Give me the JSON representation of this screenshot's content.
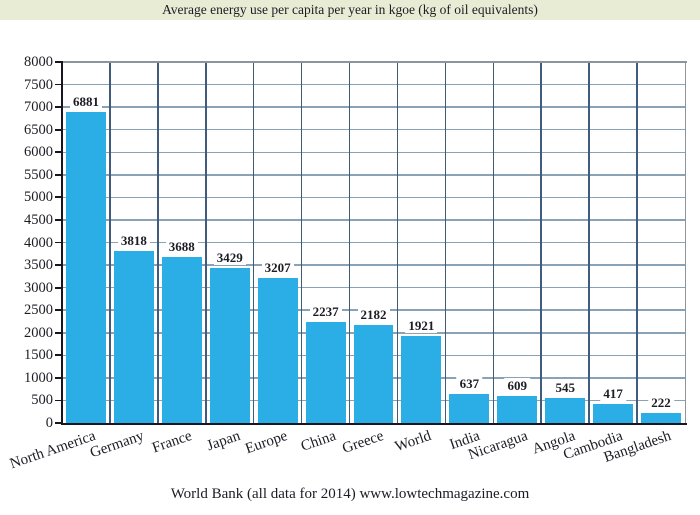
{
  "chart_data": {
    "type": "bar",
    "title": "Average energy use per capita per year in kgoe (kg of oil equivalents)",
    "source_caption": "World Bank (all data for 2014) www.lowtechmagazine.com",
    "categories": [
      "North America",
      "Germany",
      "France",
      "Japan",
      "Europe",
      "China",
      "Greece",
      "World",
      "India",
      "Nicaragua",
      "Angola",
      "Cambodia",
      "Bangladesh"
    ],
    "values": [
      6881,
      3818,
      3688,
      3429,
      3207,
      2237,
      2182,
      1921,
      637,
      609,
      545,
      417,
      222
    ],
    "xlabel": "",
    "ylabel": "",
    "ylim": [
      0,
      8000
    ],
    "ytick_step": 500,
    "yticks": [
      0,
      500,
      1000,
      1500,
      2000,
      2500,
      3000,
      3500,
      4000,
      4500,
      5000,
      5500,
      6000,
      6500,
      7000,
      7500,
      8000
    ],
    "grid": "on",
    "legend": "none",
    "value_labels_shown": true,
    "colors": {
      "bar": "#2bade6",
      "title_background": "#e9ecd5",
      "grid_horizontal": "#8aa2b5",
      "grid_vertical": "#3f5c7d",
      "axis": "#16161f",
      "frame": "#8d949c",
      "text": "#1c1c24"
    }
  }
}
